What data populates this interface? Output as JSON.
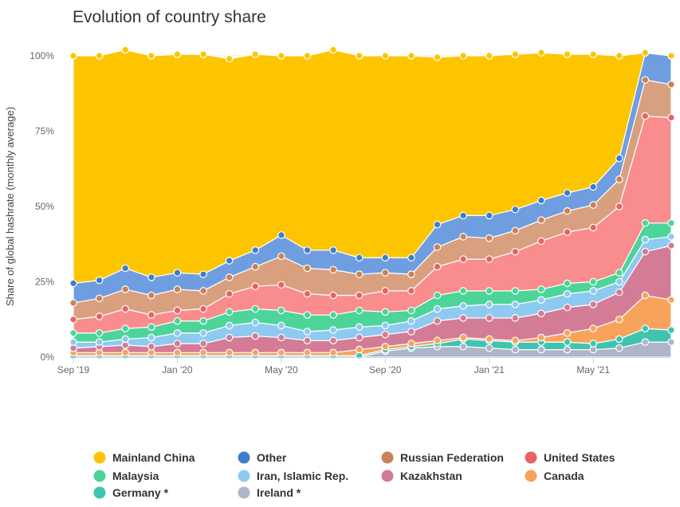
{
  "chart_data": {
    "type": "area",
    "stacked": true,
    "title": "Evolution of country share",
    "xlabel": "",
    "ylabel": "Share of global hashrate (monthly average)",
    "x": [
      "Sep 2019",
      "Oct 2019",
      "Nov 2019",
      "Dec 2019",
      "Jan 2020",
      "Feb 2020",
      "Mar 2020",
      "Apr 2020",
      "May 2020",
      "Jun 2020",
      "Jul 2020",
      "Aug 2020",
      "Sep 2020",
      "Oct 2020",
      "Nov 2020",
      "Dec 2020",
      "Jan 2021",
      "Feb 2021",
      "Mar 2021",
      "Apr 2021",
      "May 2021",
      "Jun 2021",
      "Jul 2021",
      "Aug 2021"
    ],
    "x_tick_labels": [
      "Sep '19",
      "Jan '20",
      "May '20",
      "Sep '20",
      "Jan '21",
      "May '21"
    ],
    "x_tick_indices": [
      0,
      4,
      8,
      12,
      16,
      20
    ],
    "y_tick_labels": [
      "0%",
      "25%",
      "50%",
      "75%",
      "100%"
    ],
    "ylim": [
      0,
      100
    ],
    "series": [
      {
        "name": "Ireland *",
        "color": "#b0b4c8",
        "values": [
          0.0,
          0.0,
          0.0,
          0.0,
          0.0,
          0.0,
          0.0,
          0.0,
          0.0,
          0.0,
          0.0,
          0.0,
          2.0,
          3.0,
          3.5,
          3.5,
          3.0,
          2.5,
          2.5,
          2.5,
          2.5,
          3.0,
          5.0,
          5.0
        ]
      },
      {
        "name": "Germany *",
        "color": "#3fc4b0",
        "values": [
          0.5,
          0.5,
          0.5,
          0.5,
          0.5,
          0.5,
          0.5,
          0.5,
          0.5,
          0.5,
          0.5,
          0.5,
          0.5,
          0.5,
          1.0,
          2.5,
          2.5,
          2.5,
          2.5,
          2.5,
          2.0,
          3.0,
          4.5,
          4.0
        ]
      },
      {
        "name": "Canada",
        "color": "#f7a35c",
        "values": [
          1.0,
          1.0,
          1.0,
          1.0,
          1.0,
          1.0,
          1.0,
          1.0,
          1.0,
          1.0,
          1.0,
          2.0,
          1.0,
          1.0,
          1.0,
          0.5,
          0.5,
          0.5,
          1.5,
          3.0,
          5.0,
          6.5,
          11.0,
          10.0
        ]
      },
      {
        "name": "Kazakhstan",
        "color": "#d47b96",
        "values": [
          1.5,
          2.0,
          2.5,
          2.0,
          3.0,
          3.0,
          5.0,
          5.5,
          5.0,
          4.0,
          4.0,
          4.0,
          4.0,
          4.0,
          6.5,
          6.5,
          7.0,
          7.5,
          8.0,
          8.5,
          8.0,
          9.0,
          14.5,
          18.0
        ]
      },
      {
        "name": "Iran, Islamic Rep.",
        "color": "#8ecaf0",
        "values": [
          2.0,
          1.5,
          2.0,
          3.0,
          3.5,
          3.5,
          4.0,
          4.5,
          4.0,
          3.0,
          3.5,
          3.5,
          3.0,
          3.5,
          4.0,
          4.0,
          4.5,
          4.5,
          4.5,
          4.5,
          4.5,
          3.5,
          4.0,
          3.0
        ]
      },
      {
        "name": "Malaysia",
        "color": "#4cd499",
        "values": [
          3.0,
          3.0,
          3.5,
          3.5,
          4.0,
          4.0,
          4.5,
          4.5,
          5.0,
          5.5,
          5.0,
          5.5,
          4.5,
          3.5,
          4.5,
          5.0,
          4.5,
          4.5,
          3.5,
          3.5,
          3.0,
          3.0,
          5.5,
          4.5
        ]
      },
      {
        "name": "United States",
        "color": "#f98c8c",
        "values": [
          4.5,
          5.5,
          6.5,
          4.0,
          3.5,
          4.0,
          6.0,
          7.5,
          8.5,
          7.0,
          6.5,
          5.0,
          7.0,
          6.5,
          9.5,
          10.5,
          10.5,
          13.0,
          16.0,
          17.0,
          18.0,
          22.0,
          35.5,
          35.0
        ]
      },
      {
        "name": "Russian Federation",
        "color": "#d9a07f",
        "values": [
          5.5,
          6.0,
          6.5,
          6.5,
          7.0,
          6.0,
          5.5,
          6.5,
          9.5,
          8.5,
          8.5,
          7.0,
          6.0,
          5.5,
          6.5,
          7.5,
          7.0,
          7.0,
          7.0,
          7.0,
          7.5,
          9.0,
          12.0,
          11.0
        ]
      },
      {
        "name": "Other",
        "color": "#6e9ee0",
        "values": [
          6.5,
          6.0,
          7.0,
          6.0,
          5.5,
          5.5,
          5.5,
          5.5,
          7.0,
          6.0,
          6.5,
          5.5,
          5.0,
          5.5,
          7.5,
          7.0,
          7.5,
          7.0,
          6.5,
          6.0,
          6.0,
          7.0,
          9.0,
          9.5
        ]
      },
      {
        "name": "Mainland China",
        "color": "#fdc500",
        "values": [
          75.5,
          74.5,
          72.5,
          73.5,
          72.5,
          73.0,
          67.0,
          65.0,
          59.5,
          64.5,
          66.5,
          67.0,
          67.0,
          67.0,
          55.5,
          53.0,
          53.0,
          51.5,
          49.0,
          46.0,
          44.0,
          34.0,
          0.0,
          0.0
        ]
      }
    ],
    "legend_position": "bottom",
    "legend_order": [
      "Mainland China",
      "Other",
      "Russian Federation",
      "United States",
      "Malaysia",
      "Iran, Islamic Rep.",
      "Kazakhstan",
      "Canada",
      "Germany *",
      "Ireland *"
    ],
    "legend_marker_colors": {
      "Mainland China": "#fdc500",
      "Other": "#3b7fce",
      "Russian Federation": "#c98259",
      "United States": "#ea6262",
      "Malaysia": "#4cd499",
      "Iran, Islamic Rep.": "#8ecaf0",
      "Kazakhstan": "#d47b96",
      "Canada": "#f7a35c",
      "Germany *": "#3fc4b0",
      "Ireland *": "#b0b4c8"
    },
    "grid": true
  }
}
